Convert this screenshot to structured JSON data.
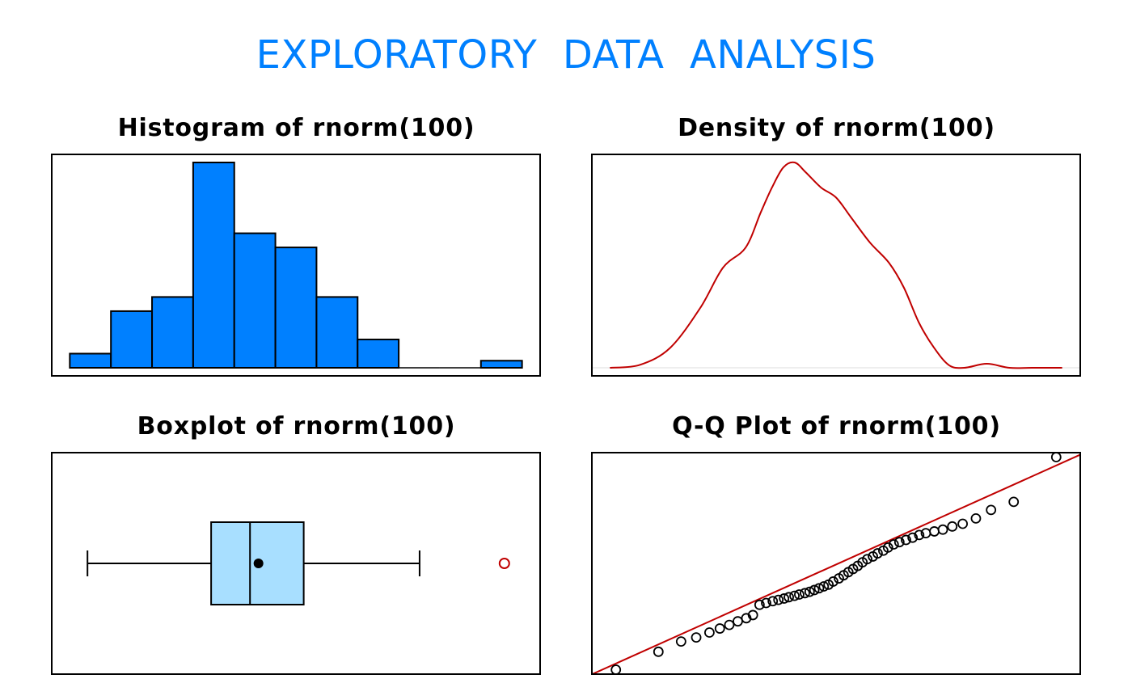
{
  "title": "EXPLORATORY  DATA  ANALYSIS",
  "colors": {
    "title": "#0080FF",
    "histogram_fill": "#0080FF",
    "density_line": "#C00000",
    "box_fill": "#A8DFFF",
    "outlier": "#C00000",
    "qq_line": "#C00000",
    "qq_points": "#000000"
  },
  "chart_data": [
    {
      "type": "bar",
      "title": "Histogram of rnorm(100)",
      "axes_shown": false,
      "bin_edges": [
        -2.5,
        -2.0,
        -1.5,
        -1.0,
        -0.5,
        0.0,
        0.5,
        1.0,
        1.5,
        2.0,
        2.5,
        3.0
      ],
      "values": [
        2,
        8,
        10,
        29,
        19,
        17,
        10,
        4,
        0,
        0,
        1
      ],
      "ylim": [
        0,
        29
      ]
    },
    {
      "type": "line",
      "title": "Density of rnorm(100)",
      "axes_shown": false,
      "x": [
        -3.0,
        -2.6,
        -2.2,
        -1.8,
        -1.5,
        -1.2,
        -1.0,
        -0.85,
        -0.7,
        -0.55,
        -0.4,
        -0.2,
        0.0,
        0.2,
        0.45,
        0.7,
        0.9,
        1.1,
        1.3,
        1.5,
        1.7,
        2.0,
        2.3,
        2.6,
        3.0
      ],
      "y": [
        0.0,
        0.006,
        0.04,
        0.12,
        0.2,
        0.24,
        0.31,
        0.36,
        0.4,
        0.41,
        0.39,
        0.36,
        0.34,
        0.3,
        0.25,
        0.21,
        0.16,
        0.09,
        0.04,
        0.005,
        0.0,
        0.008,
        0.0,
        0.0,
        0.0
      ],
      "ylim": [
        0,
        0.41
      ]
    },
    {
      "type": "boxplot",
      "title": "Boxplot of rnorm(100)",
      "axes_shown": false,
      "whisker_low": -2.3,
      "q1": -0.55,
      "median": 0.0,
      "q3": 0.76,
      "whisker_high": 2.4,
      "mean": 0.12,
      "outliers": [
        3.6
      ],
      "xlim": [
        -2.55,
        3.85
      ]
    },
    {
      "type": "scatter",
      "title": "Q-Q Plot of rnorm(100)",
      "axes_shown": false,
      "x": [
        -2.33,
        -1.88,
        -1.64,
        -1.48,
        -1.34,
        -1.23,
        -1.13,
        -1.04,
        -0.95,
        -0.88,
        -0.81,
        -0.74,
        -0.67,
        -0.61,
        -0.55,
        -0.5,
        -0.44,
        -0.39,
        -0.33,
        -0.28,
        -0.23,
        -0.18,
        -0.13,
        -0.08,
        -0.03,
        0.03,
        0.08,
        0.13,
        0.18,
        0.23,
        0.28,
        0.33,
        0.39,
        0.44,
        0.5,
        0.55,
        0.61,
        0.67,
        0.74,
        0.81,
        0.88,
        0.95,
        1.04,
        1.13,
        1.23,
        1.34,
        1.48,
        1.64,
        1.88,
        2.33
      ],
      "y": [
        -2.35,
        -1.95,
        -1.72,
        -1.63,
        -1.52,
        -1.43,
        -1.35,
        -1.27,
        -1.2,
        -1.13,
        -0.9,
        -0.86,
        -0.82,
        -0.79,
        -0.76,
        -0.73,
        -0.7,
        -0.67,
        -0.64,
        -0.61,
        -0.57,
        -0.53,
        -0.49,
        -0.45,
        -0.38,
        -0.31,
        -0.24,
        -0.17,
        -0.1,
        -0.03,
        0.05,
        0.12,
        0.18,
        0.25,
        0.31,
        0.38,
        0.45,
        0.5,
        0.55,
        0.6,
        0.66,
        0.7,
        0.74,
        0.78,
        0.85,
        0.91,
        1.03,
        1.22,
        1.4,
        2.4
      ],
      "qq_line": {
        "intercept": 0.0,
        "slope": 0.95
      },
      "xlim": [
        -2.55,
        2.55
      ],
      "ylim": [
        -2.45,
        2.5
      ]
    }
  ]
}
